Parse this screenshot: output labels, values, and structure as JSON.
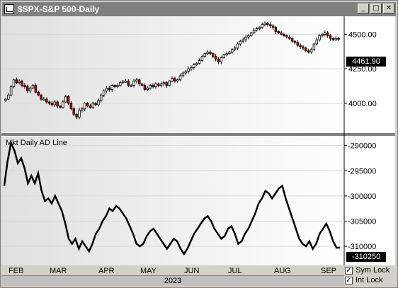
{
  "window": {
    "title": "$SPX-S&P 500-Daily",
    "minimize_glyph": "_",
    "maximize_glyph": "□",
    "close_glyph": "✕",
    "app_icon": "chart-icon"
  },
  "price_panel": {
    "current_value": "4461.90",
    "ticks": [
      "4500.00",
      "4250.00",
      "4000.00"
    ],
    "up_color": "#ffffff",
    "down_color": "#cc0000"
  },
  "indicator_panel": {
    "label": "Mkt Daily AD Line",
    "current_value": "-310250",
    "ticks": [
      "-290000",
      "-295000",
      "-300000",
      "-305000",
      "-310000"
    ]
  },
  "x_axis": {
    "months": [
      "FEB",
      "MAR",
      "APR",
      "MAY",
      "JUN",
      "JUL",
      "AUG",
      "SEP"
    ],
    "year": "2023"
  },
  "locks": {
    "sym_lock_label": "Sym Lock",
    "int_lock_label": "Int Lock",
    "sym_lock_checked": true,
    "int_lock_checked": true
  },
  "chart_data": [
    {
      "type": "candlestick",
      "title": "$SPX-S&P 500-Daily",
      "ylim": [
        3800,
        4620
      ],
      "closes": [
        4030,
        4060,
        4120,
        4170,
        4150,
        4160,
        4130,
        4120,
        4090,
        4110,
        4130,
        4080,
        4060,
        4030,
        4030,
        4010,
        4000,
        3990,
        4010,
        3980,
        3970,
        4010,
        4050,
        4000,
        3960,
        3920,
        3900,
        3950,
        3960,
        4000,
        3980,
        3970,
        4000,
        3990,
        4020,
        4060,
        4090,
        4110,
        4100,
        4130,
        4120,
        4130,
        4150,
        4160,
        4160,
        4130,
        4130,
        4160,
        4170,
        4140,
        4130,
        4100,
        4110,
        4130,
        4120,
        4140,
        4130,
        4140,
        4150,
        4130,
        4160,
        4180,
        4160,
        4170,
        4200,
        4220,
        4230,
        4250,
        4260,
        4280,
        4290,
        4310,
        4340,
        4360,
        4370,
        4360,
        4340,
        4320,
        4300,
        4330,
        4350,
        4360,
        4370,
        4390,
        4400,
        4430,
        4450,
        4460,
        4480,
        4490,
        4510,
        4530,
        4540,
        4550,
        4570,
        4580,
        4570,
        4560,
        4550,
        4520,
        4510,
        4500,
        4490,
        4480,
        4470,
        4450,
        4440,
        4420,
        4410,
        4400,
        4380,
        4370,
        4390,
        4430,
        4460,
        4490,
        4500,
        4510,
        4490,
        4470,
        4460,
        4470,
        4462
      ]
    },
    {
      "type": "line",
      "title": "Mkt Daily AD Line",
      "ylim": [
        -313500,
        -288500
      ],
      "values": [
        -298000,
        -293000,
        -289500,
        -291000,
        -293500,
        -292500,
        -294500,
        -297500,
        -296000,
        -297500,
        -295500,
        -299000,
        -301000,
        -300500,
        -301500,
        -300000,
        -301500,
        -303000,
        -305500,
        -308500,
        -309500,
        -308500,
        -310500,
        -309000,
        -310000,
        -311000,
        -309500,
        -307500,
        -306500,
        -305000,
        -304000,
        -302500,
        -303000,
        -302000,
        -302500,
        -303500,
        -304500,
        -306000,
        -307500,
        -309500,
        -310000,
        -309500,
        -308000,
        -307000,
        -306500,
        -307500,
        -308500,
        -309500,
        -310500,
        -309500,
        -308500,
        -309000,
        -310500,
        -311500,
        -310500,
        -309000,
        -307500,
        -306500,
        -305500,
        -304500,
        -304000,
        -305000,
        -306500,
        -307500,
        -308500,
        -308000,
        -306500,
        -306000,
        -307500,
        -309500,
        -309000,
        -307500,
        -306500,
        -305000,
        -303500,
        -301500,
        -300500,
        -299000,
        -299500,
        -300500,
        -299500,
        -298500,
        -298000,
        -300500,
        -302500,
        -304500,
        -306500,
        -308500,
        -309500,
        -310000,
        -309000,
        -310500,
        -309500,
        -307500,
        -306500,
        -305500,
        -307000,
        -309000,
        -310300,
        -310250
      ]
    }
  ]
}
